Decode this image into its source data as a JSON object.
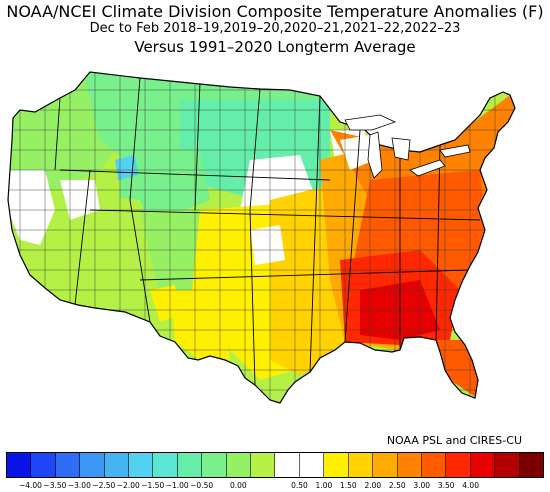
{
  "header": {
    "title": "NOAA/NCEI Climate Division Composite Temperature Anomalies (F)",
    "subtitle": "Dec to Feb  2018–19,2019–20,2020–21,2021–22,2022–23",
    "baseline": "Versus 1991–2020 Longterm Average"
  },
  "credit": "NOAA PSL and CIRES-CU",
  "legend": {
    "colors": [
      "#0a14e6",
      "#1e46f5",
      "#2d6ef5",
      "#3c96f5",
      "#46b4f0",
      "#50d2f0",
      "#5ae6d2",
      "#64eeaa",
      "#78f08c",
      "#96f064",
      "#b4f046",
      "#ffffff",
      "#ffffff",
      "#fff000",
      "#ffd200",
      "#ffaa00",
      "#ff8200",
      "#ff5a00",
      "#ff2800",
      "#e60000",
      "#b40000",
      "#7a0000"
    ],
    "ticks": [
      "−4.00",
      "−3.50",
      "−3.00",
      "−2.50",
      "−2.00",
      "−1.50",
      "−1.00",
      "−0.50",
      "0.00",
      "0.50",
      "1.00",
      "1.50",
      "2.00",
      "2.50",
      "3.00",
      "3.50",
      "4.00"
    ]
  }
}
